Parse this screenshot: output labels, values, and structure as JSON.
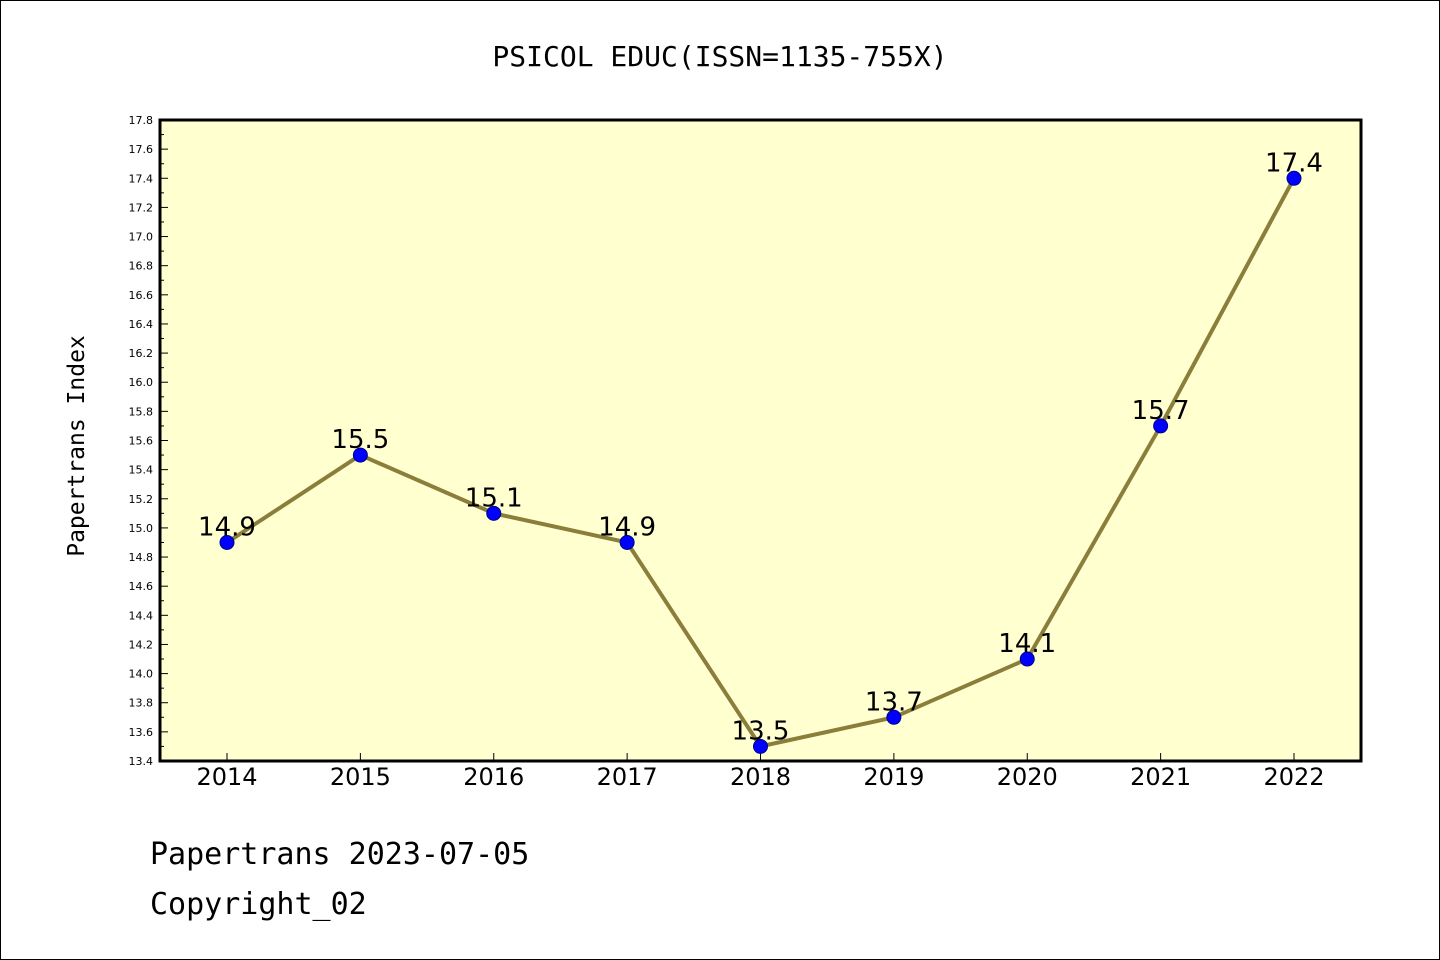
{
  "chart_data": {
    "type": "line",
    "title": "PSICOL EDUC(ISSN=1135-755X)",
    "ylabel": "Papertrans Index",
    "xlabel": "",
    "categories": [
      "2014",
      "2015",
      "2016",
      "2017",
      "2018",
      "2019",
      "2020",
      "2021",
      "2022"
    ],
    "series": [
      {
        "values": [
          14.9,
          15.5,
          15.1,
          14.9,
          13.5,
          13.7,
          14.1,
          15.7,
          17.4
        ]
      }
    ],
    "data_labels": [
      "14.9",
      "15.5",
      "15.1",
      "14.9",
      "13.5",
      "13.7",
      "14.1",
      "15.7",
      "17.4"
    ],
    "ylim": [
      13.4,
      17.8
    ],
    "ytick_step": 0.2,
    "grid": false,
    "colors": {
      "plot_background": "#ffffd0",
      "line": "#8b7d3a",
      "marker": "#0000ff"
    }
  },
  "footer": {
    "line1": "Papertrans 2023-07-05",
    "line2": "Copyright_02"
  }
}
